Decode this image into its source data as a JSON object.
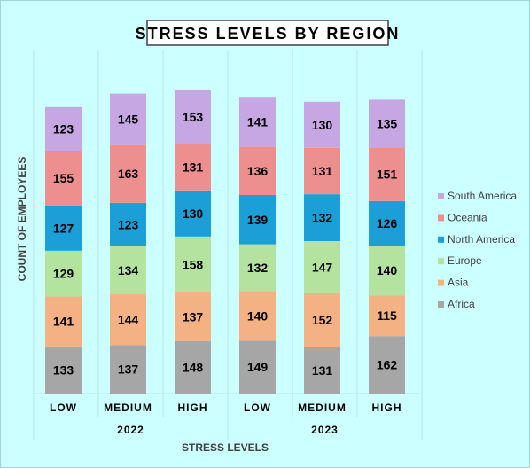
{
  "chart_data": {
    "type": "bar",
    "stacked": true,
    "title": "STRESS LEVELS BY REGION",
    "xlabel": "STRESS LEVELS",
    "ylabel": "COUNT OF EMPLOYEES",
    "groups": [
      {
        "label": "2022",
        "categories": [
          "LOW",
          "MEDIUM",
          "HIGH"
        ]
      },
      {
        "label": "2023",
        "categories": [
          "LOW",
          "MEDIUM",
          "HIGH"
        ]
      }
    ],
    "series": [
      {
        "name": "Africa",
        "color": "#a6a6a6",
        "values": [
          133,
          137,
          148,
          149,
          131,
          162
        ]
      },
      {
        "name": "Asia",
        "color": "#f4b183",
        "values": [
          141,
          144,
          137,
          140,
          152,
          115
        ]
      },
      {
        "name": "Europe",
        "color": "#b4e3a0",
        "values": [
          129,
          134,
          158,
          132,
          147,
          140
        ]
      },
      {
        "name": "North America",
        "color": "#1b9fd6",
        "values": [
          127,
          123,
          130,
          139,
          132,
          126
        ]
      },
      {
        "name": "Oceania",
        "color": "#ee8f8f",
        "values": [
          155,
          163,
          131,
          136,
          131,
          151
        ]
      },
      {
        "name": "South America",
        "color": "#c6a6e3",
        "values": [
          123,
          145,
          153,
          141,
          130,
          135
        ]
      }
    ],
    "ylim": [
      0,
      920
    ],
    "grid": false,
    "legend_position": "right"
  }
}
